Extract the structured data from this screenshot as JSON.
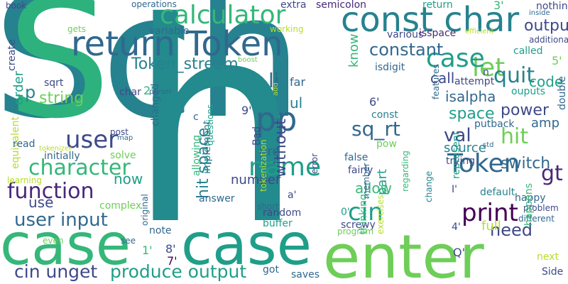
{
  "palette": {
    "deep_purple": "#440154",
    "purple": "#482878",
    "indigo": "#3e4989",
    "blue": "#31688e",
    "teal": "#26828e",
    "green_teal": "#1f9e89",
    "green": "#35b779",
    "lime": "#6ece58",
    "yellow_green": "#b5de2b",
    "yellow": "#fde725"
  },
  "words": [
    {
      "text": "Sch",
      "color": "#26828e"
    },
    {
      "text": "S",
      "color": "#2db27d"
    },
    {
      "text": "h",
      "color": "#238a8d"
    },
    {
      "text": "case",
      "color": "#35b779"
    },
    {
      "text": "case",
      "color": "#1f9e89"
    },
    {
      "text": "enter",
      "color": "#6ece58"
    },
    {
      "text": "return Token",
      "color": "#31688e"
    },
    {
      "text": "const char",
      "color": "#26828e"
    },
    {
      "text": "calculator",
      "color": "#35b779"
    },
    {
      "text": "user",
      "color": "#3e4989"
    },
    {
      "text": "pp",
      "color": "#31688e"
    },
    {
      "text": "name",
      "color": "#1f9e89"
    },
    {
      "text": "character",
      "color": "#35b779"
    },
    {
      "text": "function",
      "color": "#482878"
    },
    {
      "text": "user input",
      "color": "#31688e"
    },
    {
      "text": "produce output",
      "color": "#1f9e89"
    },
    {
      "text": "cin unget",
      "color": "#3e4989"
    },
    {
      "text": "Token",
      "color": "#31688e"
    },
    {
      "text": "print",
      "color": "#440154"
    },
    {
      "text": "cin",
      "color": "#1f9e89"
    },
    {
      "text": "gt",
      "color": "#482878"
    },
    {
      "text": "need",
      "color": "#3e4989"
    },
    {
      "text": "let",
      "color": "#6ece58"
    },
    {
      "text": "case",
      "color": "#1f9e89"
    },
    {
      "text": "li",
      "color": "#31688e"
    },
    {
      "text": "quit",
      "color": "#26828e"
    },
    {
      "text": "constant",
      "color": "#31688e"
    },
    {
      "text": "Token_stream",
      "color": "#26828e"
    },
    {
      "text": "hit",
      "color": "#6ece58"
    },
    {
      "text": "power",
      "color": "#3e4989"
    },
    {
      "text": "space",
      "color": "#1f9e89"
    },
    {
      "text": "sq_rt",
      "color": "#31688e"
    },
    {
      "text": "hit space",
      "color": "#26828e"
    },
    {
      "text": "without",
      "color": "#3e4989"
    },
    {
      "text": "string",
      "color": "#6ece58"
    },
    {
      "text": "output",
      "color": "#3e4989"
    },
    {
      "text": "code",
      "color": "#1f9e89"
    },
    {
      "text": "isalpha",
      "color": "#31688e"
    },
    {
      "text": "switch",
      "color": "#31688e"
    },
    {
      "text": "val",
      "color": "#3e4989"
    },
    {
      "text": "source",
      "color": "#26828e"
    },
    {
      "text": "now",
      "color": "#1f9e89"
    },
    {
      "text": "use",
      "color": "#3e4989"
    },
    {
      "text": "part",
      "color": "#1f9e89"
    },
    {
      "text": "allow",
      "color": "#35b779"
    },
    {
      "text": "number",
      "color": "#3e4989"
    },
    {
      "text": "pre",
      "color": "#31688e"
    },
    {
      "text": "ul",
      "color": "#26828e"
    },
    {
      "text": "p",
      "color": "#26828e"
    },
    {
      "text": "order",
      "color": "#1f9e89"
    },
    {
      "text": "know",
      "color": "#35b779"
    },
    {
      "text": "call",
      "color": "#3e4989"
    },
    {
      "text": "full",
      "color": "#b5de2b"
    },
    {
      "text": "amp",
      "color": "#31688e"
    },
    {
      "text": "br",
      "color": "#26828e"
    },
    {
      "text": "book",
      "color": "#3e4989"
    },
    {
      "text": "operations",
      "color": "#31688e"
    },
    {
      "text": "extra",
      "color": "#3e4989"
    },
    {
      "text": "semicolon",
      "color": "#482878"
    },
    {
      "text": "return",
      "color": "#1f9e89"
    },
    {
      "text": "3'",
      "color": "#35b779"
    },
    {
      "text": "nothing",
      "color": "#3e4989"
    },
    {
      "text": "inside",
      "color": "#31688e"
    },
    {
      "text": "efficient",
      "color": "#b5de2b"
    },
    {
      "text": "additional",
      "color": "#3e4989"
    },
    {
      "text": "gets",
      "color": "#6ece58"
    },
    {
      "text": "working",
      "color": "#b5de2b"
    },
    {
      "text": "variable",
      "color": "#31688e"
    },
    {
      "text": "various",
      "color": "#3e4989"
    },
    {
      "text": "isspace",
      "color": "#482878"
    },
    {
      "text": "called",
      "color": "#1f9e89"
    },
    {
      "text": "isdigit",
      "color": "#31688e"
    },
    {
      "text": "attempt",
      "color": "#3e4989"
    },
    {
      "text": "n",
      "color": "#3e4989"
    },
    {
      "text": "ouputs",
      "color": "#1f9e89"
    },
    {
      "text": "5'",
      "color": "#6ece58"
    },
    {
      "text": "double",
      "color": "#31688e"
    },
    {
      "text": "create",
      "color": "#3e4989"
    },
    {
      "text": "sqrt",
      "color": "#3e4989"
    },
    {
      "text": "char",
      "color": "#3e4989"
    },
    {
      "text": "parser",
      "color": "#31688e"
    },
    {
      "text": "boost",
      "color": "#6ece58"
    },
    {
      "text": "far",
      "color": "#31688e"
    },
    {
      "text": "changed",
      "color": "#31688e"
    },
    {
      "text": "2'",
      "color": "#35b779"
    },
    {
      "text": "features",
      "color": "#31688e"
    },
    {
      "text": "6'",
      "color": "#3e4989"
    },
    {
      "text": "putback",
      "color": "#31688e"
    },
    {
      "text": "const",
      "color": "#26828e"
    },
    {
      "text": "pow",
      "color": "#6ece58"
    },
    {
      "text": "9'",
      "color": "#3e4989"
    },
    {
      "text": "questions",
      "color": "#1f9e89"
    },
    {
      "text": "c",
      "color": "#31688e"
    },
    {
      "text": "implement",
      "color": "#26828e"
    },
    {
      "text": "allowing",
      "color": "#35b779"
    },
    {
      "text": "Bad",
      "color": "#3e4989"
    },
    {
      "text": "error",
      "color": "#3e4989"
    },
    {
      "text": "tokenization",
      "color": "#b5de2b"
    },
    {
      "text": "add",
      "color": "#b5de2b"
    },
    {
      "text": "equivalent",
      "color": "#b5de2b"
    },
    {
      "text": "read",
      "color": "#31688e"
    },
    {
      "text": "initially",
      "color": "#31688e"
    },
    {
      "text": "learning",
      "color": "#b5de2b"
    },
    {
      "text": "tokenizer",
      "color": "#b5de2b"
    },
    {
      "text": "post",
      "color": "#3e4989"
    },
    {
      "text": "map",
      "color": "#31688e"
    },
    {
      "text": "solve",
      "color": "#6ece58"
    },
    {
      "text": "false",
      "color": "#31688e"
    },
    {
      "text": "fairly",
      "color": "#3e4989"
    },
    {
      "text": "trying",
      "color": "#3e4989"
    },
    {
      "text": "std",
      "color": "#31688e"
    },
    {
      "text": "represent",
      "color": "#1f9e89"
    },
    {
      "text": "default",
      "color": "#26828e"
    },
    {
      "text": "happy",
      "color": "#31688e"
    },
    {
      "text": "problem",
      "color": "#3e4989"
    },
    {
      "text": "different",
      "color": "#31688e"
    },
    {
      "text": "I'",
      "color": "#3e4989"
    },
    {
      "text": "screwy",
      "color": "#3e4989"
    },
    {
      "text": "member",
      "color": "#31688e"
    },
    {
      "text": "change",
      "color": "#26828e"
    },
    {
      "text": "a'",
      "color": "#3e4989"
    },
    {
      "text": "0'",
      "color": "#1f9e89"
    },
    {
      "text": "4'",
      "color": "#3e4989"
    },
    {
      "text": "complex",
      "color": "#6ece58"
    },
    {
      "text": "answer",
      "color": "#31688e"
    },
    {
      "text": "short",
      "color": "#31688e"
    },
    {
      "text": "random",
      "color": "#3e4989"
    },
    {
      "text": "buffer",
      "color": "#1f9e89"
    },
    {
      "text": "program",
      "color": "#6ece58"
    },
    {
      "text": "regarding",
      "color": "#35b779"
    },
    {
      "text": "original",
      "color": "#31688e"
    },
    {
      "text": "note",
      "color": "#31688e"
    },
    {
      "text": "see",
      "color": "#31688e"
    },
    {
      "text": "even",
      "color": "#6ece58"
    },
    {
      "text": "1'",
      "color": "#35b779"
    },
    {
      "text": "8'",
      "color": "#3e4989"
    },
    {
      "text": "7'",
      "color": "#440154"
    },
    {
      "text": "got",
      "color": "#31688e"
    },
    {
      "text": "saves",
      "color": "#31688e"
    },
    {
      "text": "thinking",
      "color": "#35b779"
    },
    {
      "text": "exercises",
      "color": "#b5de2b"
    },
    {
      "text": "happens",
      "color": "#35b779"
    },
    {
      "text": "Q'",
      "color": "#3e4989"
    },
    {
      "text": "next",
      "color": "#b5de2b"
    },
    {
      "text": "Side",
      "color": "#3e4989"
    }
  ]
}
